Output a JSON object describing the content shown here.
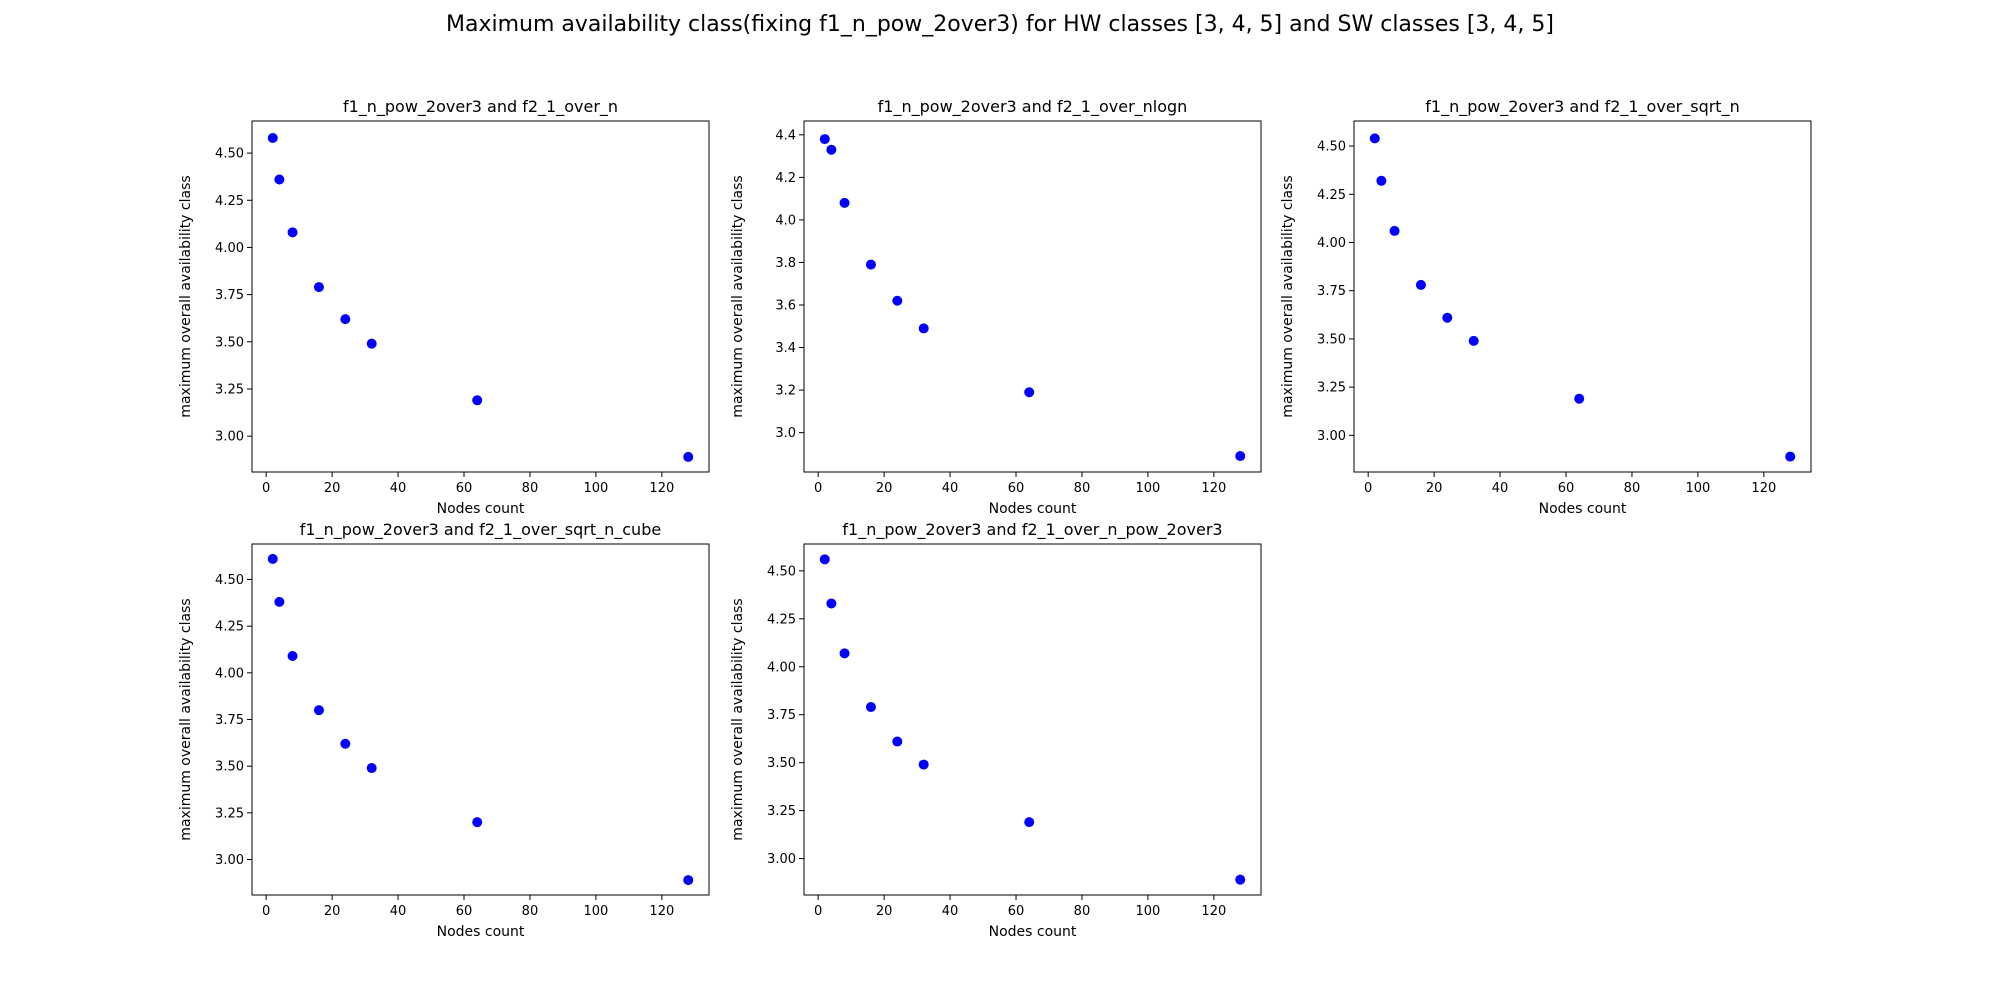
{
  "figure_title": "Maximum availability class(fixing f1_n_pow_2over3) for HW classes [3, 4, 5] and SW classes [3, 4, 5]",
  "colors": {
    "marker": "#0000ff",
    "axes": "#000000",
    "background": "#ffffff"
  },
  "chart_data": [
    {
      "type": "scatter",
      "title": "f1_n_pow_2over3 and f2_1_over_n",
      "xlabel": "Nodes count",
      "ylabel": "maximum overall availability class",
      "xlim": [
        -4.3,
        134.3
      ],
      "ylim": [
        2.81,
        4.67
      ],
      "xticks": [
        0,
        20,
        40,
        60,
        80,
        100,
        120
      ],
      "yticks": [
        3.0,
        3.25,
        3.5,
        3.75,
        4.0,
        4.25,
        4.5
      ],
      "ytick_labels": [
        "3.00",
        "3.25",
        "3.50",
        "3.75",
        "4.00",
        "4.25",
        "4.50"
      ],
      "grid": false,
      "x": [
        2,
        4,
        8,
        16,
        24,
        32,
        64,
        128
      ],
      "y": [
        4.58,
        4.36,
        4.08,
        3.79,
        3.62,
        3.49,
        3.19,
        2.89
      ]
    },
    {
      "type": "scatter",
      "title": "f1_n_pow_2over3 and f2_1_over_nlogn",
      "xlabel": "Nodes count",
      "ylabel": "maximum overall availability class",
      "xlim": [
        -4.3,
        134.3
      ],
      "ylim": [
        2.815,
        4.465
      ],
      "xticks": [
        0,
        20,
        40,
        60,
        80,
        100,
        120
      ],
      "yticks": [
        3.0,
        3.2,
        3.4,
        3.6,
        3.8,
        4.0,
        4.2,
        4.4
      ],
      "ytick_labels": [
        "3.0",
        "3.2",
        "3.4",
        "3.6",
        "3.8",
        "4.0",
        "4.2",
        "4.4"
      ],
      "grid": false,
      "x": [
        2,
        4,
        8,
        16,
        24,
        32,
        64,
        128
      ],
      "y": [
        4.38,
        4.33,
        4.08,
        3.79,
        3.62,
        3.49,
        3.19,
        2.89
      ]
    },
    {
      "type": "scatter",
      "title": "f1_n_pow_2over3 and f2_1_over_sqrt_n",
      "xlabel": "Nodes count",
      "ylabel": "maximum overall availability class",
      "xlim": [
        -4.3,
        134.3
      ],
      "ylim": [
        2.81,
        4.63
      ],
      "xticks": [
        0,
        20,
        40,
        60,
        80,
        100,
        120
      ],
      "yticks": [
        3.0,
        3.25,
        3.5,
        3.75,
        4.0,
        4.25,
        4.5
      ],
      "ytick_labels": [
        "3.00",
        "3.25",
        "3.50",
        "3.75",
        "4.00",
        "4.25",
        "4.50"
      ],
      "grid": false,
      "x": [
        2,
        4,
        8,
        16,
        24,
        32,
        64,
        128
      ],
      "y": [
        4.54,
        4.32,
        4.06,
        3.78,
        3.61,
        3.49,
        3.19,
        2.89
      ]
    },
    {
      "type": "scatter",
      "title": "f1_n_pow_2over3 and f2_1_over_sqrt_n_cube",
      "xlabel": "Nodes count",
      "ylabel": "maximum overall availability class",
      "xlim": [
        -4.3,
        134.3
      ],
      "ylim": [
        2.81,
        4.69
      ],
      "xticks": [
        0,
        20,
        40,
        60,
        80,
        100,
        120
      ],
      "yticks": [
        3.0,
        3.25,
        3.5,
        3.75,
        4.0,
        4.25,
        4.5
      ],
      "ytick_labels": [
        "3.00",
        "3.25",
        "3.50",
        "3.75",
        "4.00",
        "4.25",
        "4.50"
      ],
      "grid": false,
      "x": [
        2,
        4,
        8,
        16,
        24,
        32,
        64,
        128
      ],
      "y": [
        4.61,
        4.38,
        4.09,
        3.8,
        3.62,
        3.49,
        3.2,
        2.89
      ]
    },
    {
      "type": "scatter",
      "title": "f1_n_pow_2over3 and f2_1_over_n_pow_2over3",
      "xlabel": "Nodes count",
      "ylabel": "maximum overall availability class",
      "xlim": [
        -4.3,
        134.3
      ],
      "ylim": [
        2.81,
        4.64
      ],
      "xticks": [
        0,
        20,
        40,
        60,
        80,
        100,
        120
      ],
      "yticks": [
        3.0,
        3.25,
        3.5,
        3.75,
        4.0,
        4.25,
        4.5
      ],
      "ytick_labels": [
        "3.00",
        "3.25",
        "3.50",
        "3.75",
        "4.00",
        "4.25",
        "4.50"
      ],
      "grid": false,
      "x": [
        2,
        4,
        8,
        16,
        24,
        32,
        64,
        128
      ],
      "y": [
        4.56,
        4.33,
        4.07,
        3.79,
        3.61,
        3.49,
        3.19,
        2.89
      ]
    }
  ]
}
